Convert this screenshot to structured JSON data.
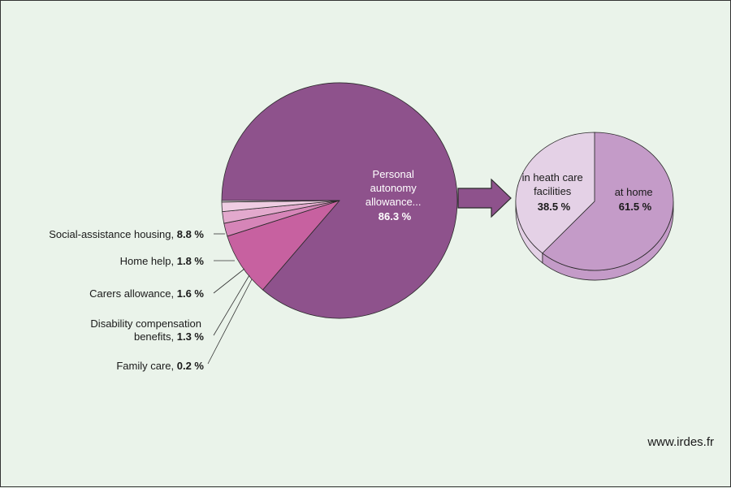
{
  "chart_data": [
    {
      "type": "pie",
      "title": "",
      "slices": [
        {
          "name": "Personal autonomy allowance...",
          "value": 86.3,
          "label": "86.3 %",
          "color": "#8e528c"
        },
        {
          "name": "Social-assistance housing",
          "value": 8.8,
          "label": "8.8 %",
          "color": "#c761a0"
        },
        {
          "name": "Home help",
          "value": 1.8,
          "label": "1.8 %",
          "color": "#d685b8"
        },
        {
          "name": "Carers allowance",
          "value": 1.6,
          "label": "1.6 %",
          "color": "#e3a9cd"
        },
        {
          "name": "Disability compensation benefits",
          "value": 1.3,
          "label": "1.3 %",
          "color": "#efcde2"
        },
        {
          "name": "Family care",
          "value": 0.2,
          "label": "0.2 %",
          "color": "#faf0f6"
        }
      ],
      "main_label": {
        "line1": "Personal",
        "line2": "autonomy",
        "line3": "allowance...",
        "value": "86.3 %"
      },
      "side_labels": [
        {
          "text": "Social-assistance housing,",
          "value": "8.8 %"
        },
        {
          "text": "Home help,",
          "value": "1.8 %"
        },
        {
          "text": "Carers allowance,",
          "value": "1.6 %"
        },
        {
          "text_line1": "Disability compensation",
          "text": "benefits,",
          "value": "1.3 %"
        },
        {
          "text": "Family care,",
          "value": "0.2 %"
        }
      ]
    },
    {
      "type": "pie",
      "title": "",
      "slices": [
        {
          "name": "at home",
          "value": 61.5,
          "label": "61.5 %",
          "color": "#c49bc8"
        },
        {
          "name": "in heath care facilities",
          "value": 38.5,
          "label": "38.5 %",
          "color": "#e4d1e6"
        }
      ],
      "labels": {
        "home": {
          "line1": "at home",
          "value": "61.5 %"
        },
        "care": {
          "line1": "in heath care",
          "line2": "facilities",
          "value": "38.5 %"
        }
      }
    }
  ],
  "colors": {
    "arrow": "#8e528c",
    "outline": "#2a2a2a",
    "background": "#eaf3ea"
  },
  "credit": "www.irdes.fr"
}
